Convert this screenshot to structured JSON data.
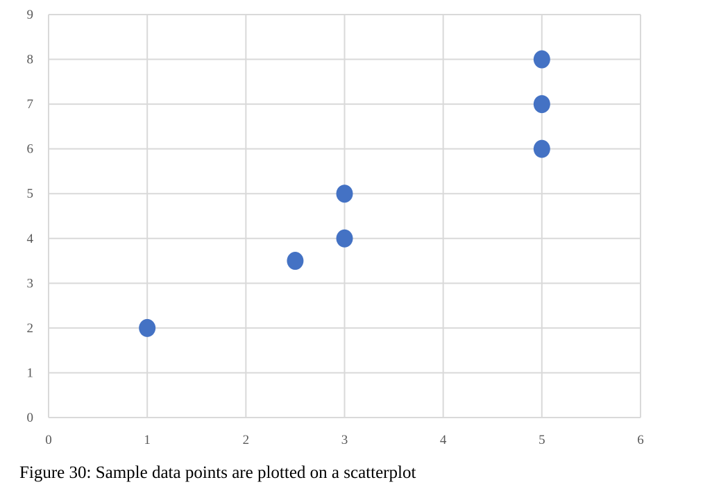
{
  "chart_data": {
    "type": "scatter",
    "title": "",
    "xlabel": "",
    "ylabel": "",
    "xlim": [
      0,
      6
    ],
    "ylim": [
      0,
      9
    ],
    "x_ticks": [
      "0",
      "1",
      "2",
      "3",
      "4",
      "5",
      "6"
    ],
    "y_ticks": [
      "0",
      "1",
      "2",
      "3",
      "4",
      "5",
      "6",
      "7",
      "8",
      "9"
    ],
    "grid": true,
    "legend": "none",
    "series": [
      {
        "color": "#4472C4",
        "points": [
          {
            "x": 1,
            "y": 2
          },
          {
            "x": 2.5,
            "y": 3.5
          },
          {
            "x": 3,
            "y": 4
          },
          {
            "x": 3,
            "y": 5
          },
          {
            "x": 5,
            "y": 6
          },
          {
            "x": 5,
            "y": 7
          },
          {
            "x": 5,
            "y": 8
          }
        ]
      }
    ],
    "gridline_color": "#D9D9D9",
    "tick_label_color": "#595959"
  },
  "caption": "Figure 30: Sample data points are plotted on a scatterplot"
}
